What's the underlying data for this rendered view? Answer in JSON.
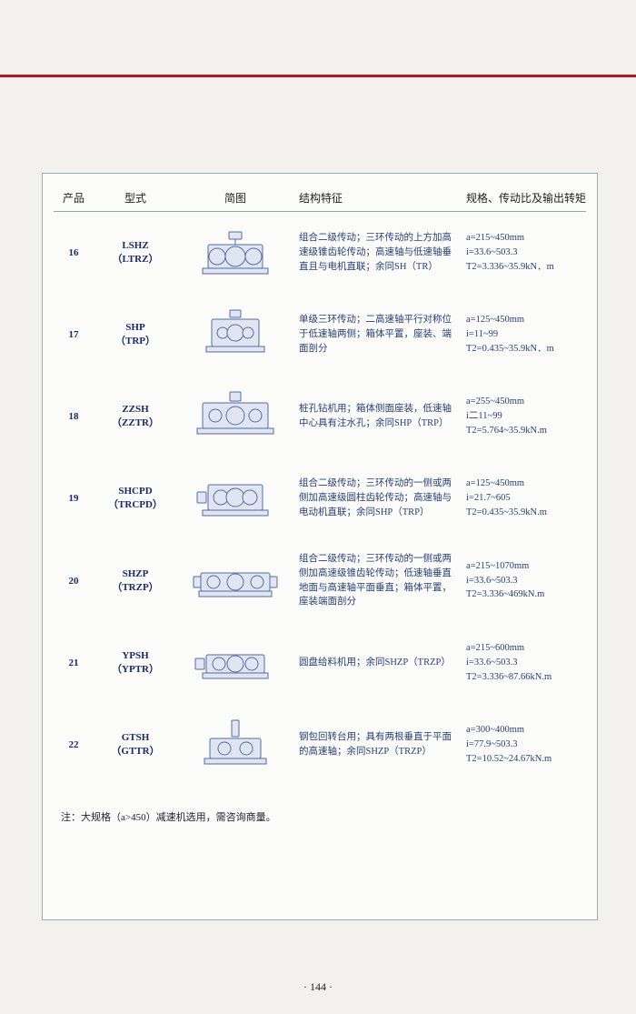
{
  "page_number": "· 144 ·",
  "note": "注：大规格（a>450）减速机选用，需咨询商量。",
  "headers": {
    "num": "产品",
    "model": "型式",
    "fig": "简图",
    "desc": "结构特征",
    "spec": "规格、传动比及输出转矩"
  },
  "rows": [
    {
      "num": "16",
      "model": "LSHZ\n（LTRZ）",
      "desc": "组合二级传动；三环传动的上方加高速级锥齿轮传动；高速轴与低速轴垂直且与电机直联；余同SH（TR）",
      "spec": "a=215~450mm\ni=33.6~503.3\nT2=3.336~35.9kN．m",
      "fig": "A"
    },
    {
      "num": "17",
      "model": "SHP\n（TRP）",
      "desc": "单级三环传动；二高速轴平行对称位于低速轴两侧；箱体平置，座装、端面剖分",
      "spec": "a=125~450mm\ni=11~99\nT2=0.435~35.9kN．m",
      "fig": "B"
    },
    {
      "num": "18",
      "model": "ZZSH\n（ZZTR）",
      "desc": "桩孔钻机用；箱体侧面座装，低速轴中心具有注水孔；余同SHP（TRP）",
      "spec": "a=255~450mm\ni二11~99\nT2=5.764~35.9kN.m",
      "fig": "C"
    },
    {
      "num": "19",
      "model": "SHCPD\n（TRCPD）",
      "desc": "组合二级传动；三环传动的一侧或两侧加高速级圆柱齿轮传动；高速轴与电动机直联；余同SHP（TRP）",
      "spec": "a=125~450mm\ni=21.7~605\nT2=0.435~35.9kN.m",
      "fig": "D"
    },
    {
      "num": "20",
      "model": "SHZP\n（TRZP）",
      "desc": "组合二级传动；三环传动的一侧或两侧加高速级锥齿轮传动；低速轴垂直地面与高速轴平面垂直；箱体平置，座装端面剖分",
      "spec": "a=215~1070mm\ni=33.6~503.3\nT2=3.336~469kN.m",
      "fig": "E"
    },
    {
      "num": "21",
      "model": "YPSH\n（YPTR）",
      "desc": "圆盘给料机用；余同SHZP（TRZP）",
      "spec": "a=215~600mm\ni=33.6~503.3\nT2=3.336~87.66kN.m",
      "fig": "F"
    },
    {
      "num": "22",
      "model": "GTSH\n（GTTR）",
      "desc": "钢包回转台用；具有两根垂直于平面的高速轴；余同SHZP（TRZP）",
      "spec": "a=300~400mm\ni=77.9~503.3\nT2=10.52~24.67kN.m",
      "fig": "G"
    }
  ],
  "svg": {
    "stroke": "#5a6aa0",
    "fill": "#dfe6f2",
    "width": 100,
    "height": 62
  }
}
